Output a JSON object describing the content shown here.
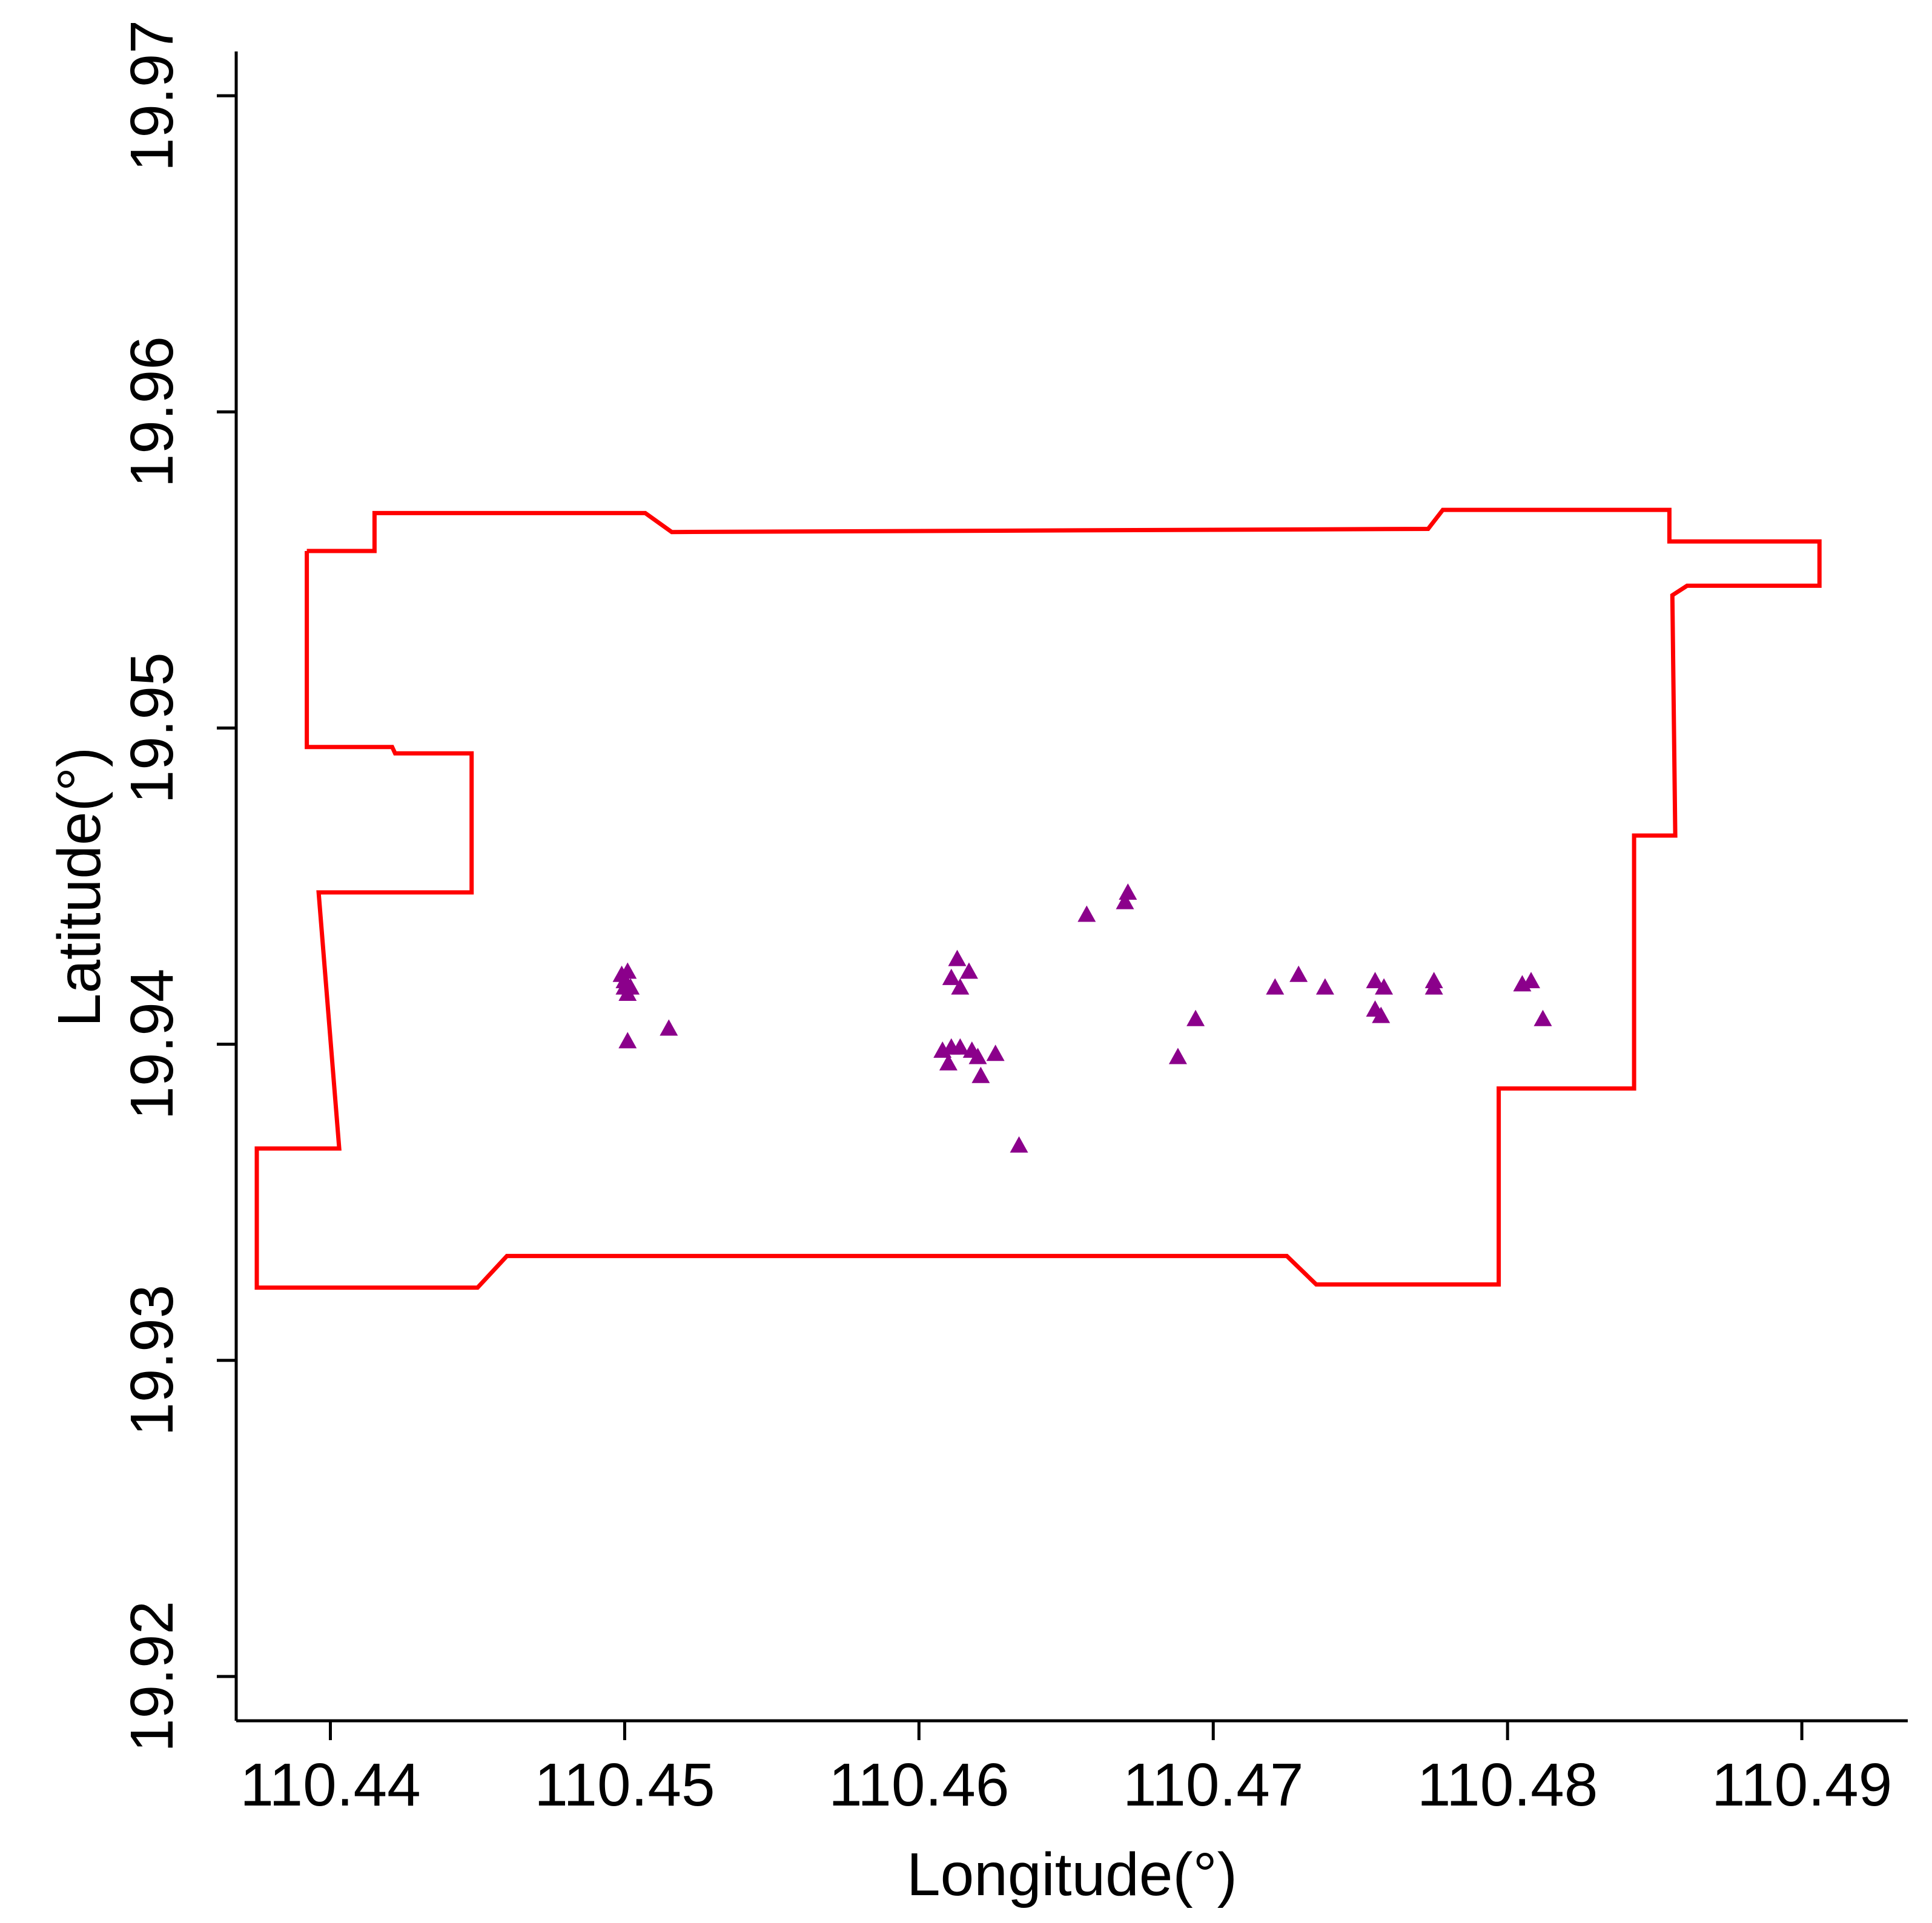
{
  "chart_data": {
    "type": "scatter",
    "xlabel": "Longitude(°)",
    "ylabel": "Latitude(°)",
    "xlim": [
      110.4368,
      110.4936
    ],
    "ylim": [
      19.9186,
      19.9714
    ],
    "x_ticks": [
      110.44,
      110.45,
      110.46,
      110.47,
      110.48,
      110.49
    ],
    "x_tick_labels": [
      "110.44",
      "110.45",
      "110.46",
      "110.47",
      "110.48",
      "110.49"
    ],
    "y_ticks": [
      19.92,
      19.93,
      19.94,
      19.95,
      19.96,
      19.97
    ],
    "y_tick_labels": [
      "19.92",
      "19.93",
      "19.94",
      "19.95",
      "19.96",
      "19.97"
    ],
    "grid": false,
    "boundary": {
      "color": "#ff0000",
      "points": [
        [
          110.4392,
          19.9556
        ],
        [
          110.4415,
          19.9556
        ],
        [
          110.4415,
          19.9568
        ],
        [
          110.4507,
          19.9568
        ],
        [
          110.4516,
          19.9562
        ],
        [
          110.4773,
          19.9563
        ],
        [
          110.4778,
          19.9569
        ],
        [
          110.4855,
          19.9569
        ],
        [
          110.4855,
          19.9559
        ],
        [
          110.4906,
          19.9559
        ],
        [
          110.4906,
          19.9545
        ],
        [
          110.4861,
          19.9545
        ],
        [
          110.4856,
          19.9542
        ],
        [
          110.4857,
          19.9466
        ],
        [
          110.4843,
          19.9466
        ],
        [
          110.4843,
          19.9386
        ],
        [
          110.4797,
          19.9386
        ],
        [
          110.4797,
          19.9324
        ],
        [
          110.4735,
          19.9324
        ],
        [
          110.4725,
          19.9333
        ],
        [
          110.446,
          19.9333
        ],
        [
          110.445,
          19.9323
        ],
        [
          110.4375,
          19.9323
        ],
        [
          110.4375,
          19.9367
        ],
        [
          110.4403,
          19.9367
        ],
        [
          110.4396,
          19.9448
        ],
        [
          110.4448,
          19.9448
        ],
        [
          110.4448,
          19.9492
        ],
        [
          110.4422,
          19.9492
        ],
        [
          110.4421,
          19.9494
        ],
        [
          110.4392,
          19.9494
        ],
        [
          110.4392,
          19.9556
        ]
      ]
    },
    "series": [
      {
        "marker": "triangle",
        "color": "#8b008b",
        "points": [
          [
            110.4499,
            19.9422
          ],
          [
            110.4501,
            19.9423
          ],
          [
            110.45,
            19.942
          ],
          [
            110.45,
            19.9418
          ],
          [
            110.4501,
            19.9416
          ],
          [
            110.4502,
            19.9418
          ],
          [
            110.4501,
            19.9401
          ],
          [
            110.4515,
            19.9405
          ],
          [
            110.4613,
            19.9427
          ],
          [
            110.4611,
            19.9421
          ],
          [
            110.4617,
            19.9423
          ],
          [
            110.4614,
            19.9418
          ],
          [
            110.4608,
            19.9398
          ],
          [
            110.461,
            19.9394
          ],
          [
            110.4611,
            19.9399
          ],
          [
            110.4614,
            19.9399
          ],
          [
            110.4618,
            19.9398
          ],
          [
            110.462,
            19.9396
          ],
          [
            110.4621,
            19.939
          ],
          [
            110.4626,
            19.9397
          ],
          [
            110.4634,
            19.9368
          ],
          [
            110.4657,
            19.9441
          ],
          [
            110.467,
            19.9445
          ],
          [
            110.4671,
            19.9448
          ],
          [
            110.4688,
            19.9396
          ],
          [
            110.4694,
            19.9408
          ],
          [
            110.4721,
            19.9418
          ],
          [
            110.4729,
            19.9422
          ],
          [
            110.4738,
            19.9418
          ],
          [
            110.4755,
            19.942
          ],
          [
            110.4755,
            19.9411
          ],
          [
            110.4757,
            19.9409
          ],
          [
            110.4758,
            19.9418
          ],
          [
            110.4775,
            19.9418
          ],
          [
            110.4775,
            19.942
          ],
          [
            110.4805,
            19.9419
          ],
          [
            110.4808,
            19.942
          ],
          [
            110.4812,
            19.9408
          ]
        ]
      }
    ]
  }
}
